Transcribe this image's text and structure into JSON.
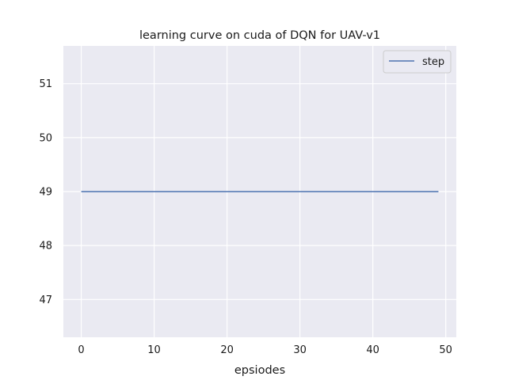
{
  "chart_data": {
    "type": "line",
    "title": "learning curve on cuda of DQN for UAV-v1",
    "xlabel": "epsiodes",
    "ylabel": "",
    "xlim": [
      -2.45,
      51.45
    ],
    "ylim": [
      46.3,
      51.7
    ],
    "xticks": [
      0,
      10,
      20,
      30,
      40,
      50
    ],
    "yticks": [
      47,
      48,
      49,
      50,
      51
    ],
    "grid": true,
    "legend_position": "top-right",
    "background_color": "#eaeaf2",
    "series": [
      {
        "name": "step",
        "color": "#4c72b0",
        "x": [
          0,
          49
        ],
        "y": [
          49,
          49
        ]
      }
    ]
  }
}
